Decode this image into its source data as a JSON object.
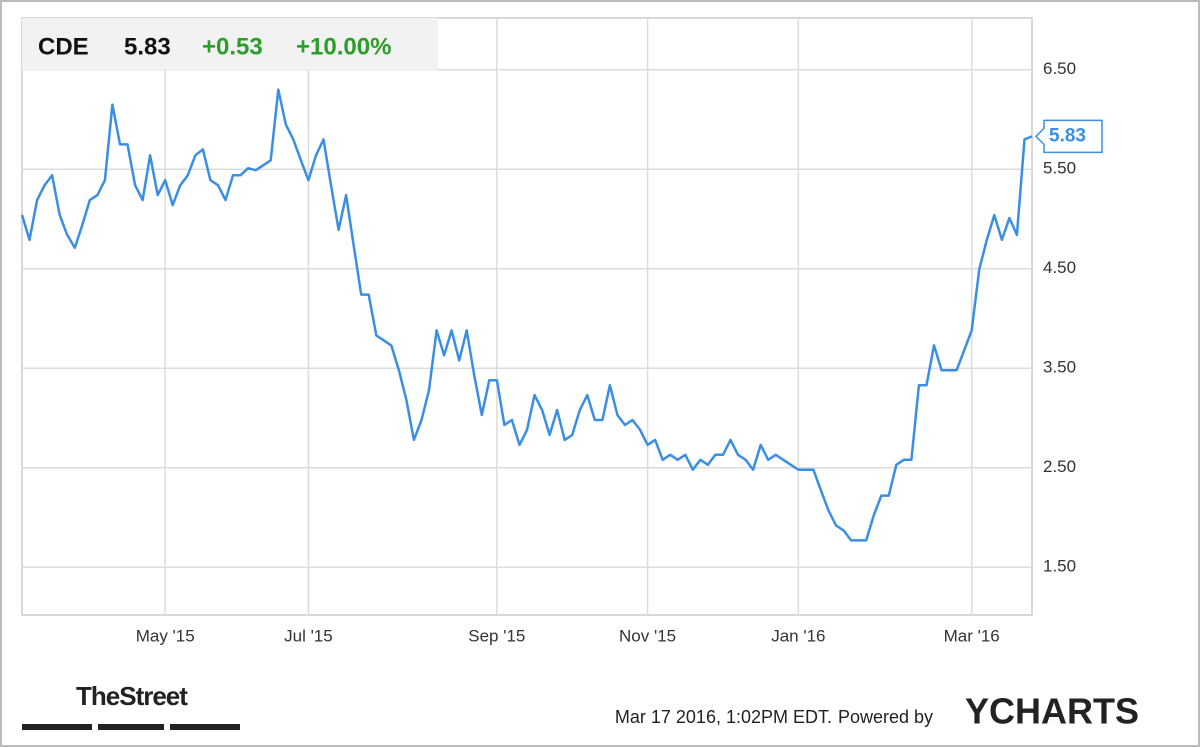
{
  "chart_data": {
    "type": "line",
    "header": {
      "ticker": "CDE",
      "price": "5.83",
      "change": "+0.53",
      "change_pct": "+10.00%"
    },
    "footer": {
      "source": "TheStreet",
      "timestamp": "Mar 17 2016, 1:02PM EDT.",
      "powered_by": "Powered by",
      "brand": "YCHARTS"
    },
    "categories": [
      null,
      null,
      null,
      null,
      null,
      null,
      null,
      null,
      null,
      null,
      null,
      null,
      null,
      null,
      null,
      null,
      null,
      null,
      null,
      "May '15",
      null,
      null,
      null,
      null,
      null,
      null,
      null,
      null,
      null,
      null,
      null,
      null,
      null,
      null,
      null,
      null,
      null,
      null,
      "Jul '15",
      null,
      null,
      null,
      null,
      null,
      null,
      null,
      null,
      null,
      null,
      null,
      null,
      null,
      null,
      null,
      null,
      null,
      null,
      null,
      null,
      null,
      null,
      null,
      null,
      "Sep '15",
      null,
      null,
      null,
      null,
      null,
      null,
      null,
      null,
      null,
      null,
      null,
      null,
      null,
      null,
      null,
      null,
      null,
      null,
      null,
      "Nov '15",
      null,
      null,
      null,
      null,
      null,
      null,
      null,
      null,
      null,
      null,
      null,
      null,
      null,
      null,
      null,
      null,
      null,
      null,
      null,
      "Jan '16",
      null,
      null,
      null,
      null,
      null,
      null,
      null,
      null,
      null,
      null,
      null,
      null,
      null,
      null,
      null,
      null,
      null,
      null,
      null,
      null,
      null,
      null,
      "Mar '16",
      null,
      null,
      null,
      null,
      null,
      null,
      null,
      null
    ],
    "series": [
      {
        "name": "CDE",
        "color": "#3a8fe4",
        "values": [
          5.04,
          4.79,
          5.19,
          5.34,
          5.44,
          5.04,
          4.84,
          4.71,
          4.94,
          5.19,
          5.24,
          5.39,
          6.15,
          5.75,
          5.75,
          5.34,
          5.19,
          5.64,
          5.24,
          5.39,
          5.14,
          5.34,
          5.44,
          5.64,
          5.7,
          5.39,
          5.34,
          5.19,
          5.44,
          5.44,
          5.51,
          5.49,
          5.54,
          5.59,
          6.3,
          5.95,
          5.8,
          5.59,
          5.39,
          5.64,
          5.8,
          5.34,
          4.89,
          5.24,
          4.74,
          4.24,
          4.24,
          3.83,
          3.78,
          3.73,
          3.48,
          3.18,
          2.78,
          2.98,
          3.28,
          3.88,
          3.63,
          3.88,
          3.58,
          3.88,
          3.43,
          3.03,
          3.38,
          3.38,
          2.93,
          2.98,
          2.73,
          2.88,
          3.23,
          3.08,
          2.83,
          3.08,
          2.78,
          2.83,
          3.08,
          3.23,
          2.98,
          2.98,
          3.33,
          3.03,
          2.93,
          2.98,
          2.88,
          2.73,
          2.78,
          2.58,
          2.63,
          2.58,
          2.63,
          2.48,
          2.58,
          2.53,
          2.63,
          2.63,
          2.78,
          2.63,
          2.58,
          2.48,
          2.73,
          2.58,
          2.63,
          2.58,
          2.53,
          2.48,
          2.48,
          2.48,
          2.27,
          2.07,
          1.92,
          1.87,
          1.77,
          1.77,
          1.77,
          2.02,
          2.22,
          2.22,
          2.53,
          2.58,
          2.58,
          3.33,
          3.33,
          3.73,
          3.48,
          3.48,
          3.48,
          3.68,
          3.88,
          4.49,
          4.79,
          5.04,
          4.79,
          5.01,
          4.84,
          5.8,
          5.83
        ]
      }
    ],
    "ylim": [
      1.02,
      7.02
    ],
    "yticks": [
      {
        "value": 1.5,
        "label": "1.50"
      },
      {
        "value": 2.5,
        "label": "2.50"
      },
      {
        "value": 3.5,
        "label": "3.50"
      },
      {
        "value": 4.5,
        "label": "4.50"
      },
      {
        "value": 5.5,
        "label": "5.50"
      },
      {
        "value": 6.5,
        "label": "6.50"
      }
    ],
    "grid": true
  }
}
